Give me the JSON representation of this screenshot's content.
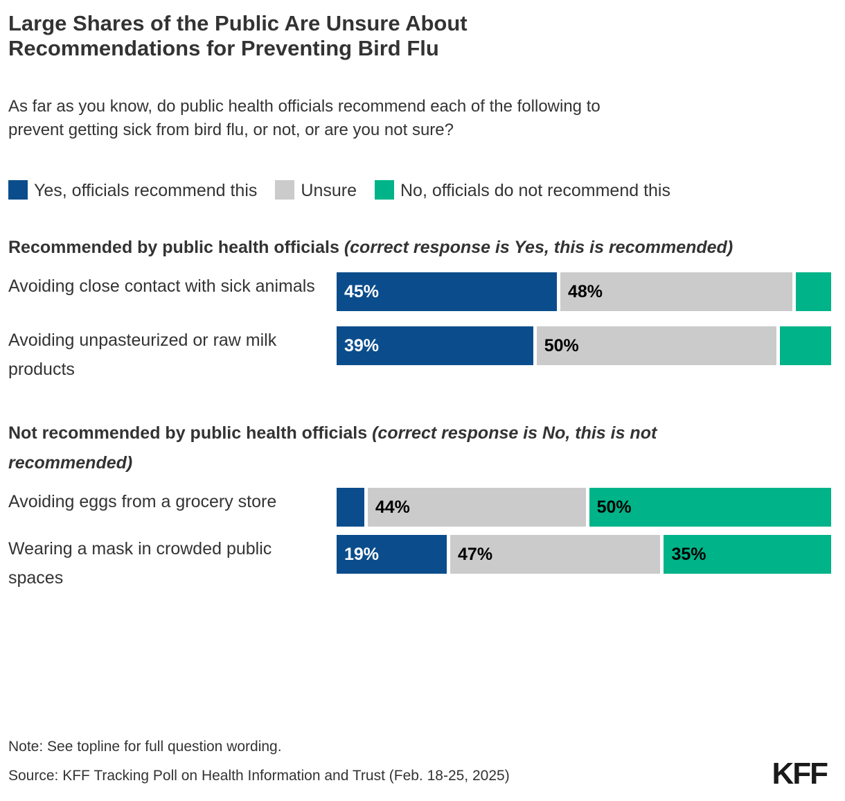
{
  "title": "Large Shares of the Public Are Unsure About Recommendations for Preventing Bird Flu",
  "subtitle": "As far as you know, do public health officials recommend each of the following to prevent getting sick from bird flu, or not, or are you not sure?",
  "colors": {
    "yes": "#0B4D8C",
    "unsure": "#CBCBCB",
    "no": "#00B388"
  },
  "legend": {
    "items": [
      {
        "key": "yes",
        "label": "Yes, officials recommend this"
      },
      {
        "key": "unsure",
        "label": "Unsure"
      },
      {
        "key": "no",
        "label": "No, officials do not recommend this"
      }
    ]
  },
  "groups": [
    {
      "heading_bold": "Recommended by public health officials",
      "heading_italic": " (correct response is Yes, this is recommended)",
      "rows": [
        {
          "label": "Avoiding close contact with sick animals",
          "segments": [
            {
              "key": "yes",
              "value": 45,
              "display": "45%"
            },
            {
              "key": "unsure",
              "value": 48,
              "display": "48%"
            },
            {
              "key": "no",
              "value": 7,
              "display": ""
            }
          ]
        },
        {
          "label": "Avoiding unpasteurized or raw milk products",
          "segments": [
            {
              "key": "yes",
              "value": 39,
              "display": "39%"
            },
            {
              "key": "unsure",
              "value": 50,
              "display": "50%"
            },
            {
              "key": "no",
              "value": 11,
              "display": ""
            }
          ]
        }
      ]
    },
    {
      "heading_bold": "Not recommended by public health officials",
      "heading_italic": " (correct response is No, this is not recommended)",
      "rows": [
        {
          "label": "Avoiding eggs from a grocery store",
          "segments": [
            {
              "key": "yes",
              "value": 5,
              "display": ""
            },
            {
              "key": "unsure",
              "value": 44,
              "display": "44%"
            },
            {
              "key": "no",
              "value": 50,
              "display": "50%"
            }
          ]
        },
        {
          "label": "Wearing a mask in crowded public spaces",
          "segments": [
            {
              "key": "yes",
              "value": 19,
              "display": "19%"
            },
            {
              "key": "unsure",
              "value": 47,
              "display": "47%"
            },
            {
              "key": "no",
              "value": 35,
              "display": "35%"
            }
          ]
        }
      ]
    }
  ],
  "footer": {
    "note": "Note: See topline for full question wording.",
    "source": "Source: KFF Tracking Poll on Health Information and Trust (Feb. 18-25, 2025)",
    "logo": "KFF"
  },
  "chart_data": {
    "type": "bar",
    "variant": "horizontal-stacked",
    "title": "Large Shares of the Public Are Unsure About Recommendations for Preventing Bird Flu",
    "question": "As far as you know, do public health officials recommend each of the following to prevent getting sick from bird flu, or not, or are you not sure?",
    "categories": [
      "Avoiding close contact with sick animals",
      "Avoiding unpasteurized or raw milk products",
      "Avoiding eggs from a grocery store",
      "Wearing a mask in crowded public spaces"
    ],
    "category_groups": [
      "Recommended by public health officials (correct response is Yes, this is recommended)",
      "Recommended by public health officials (correct response is Yes, this is recommended)",
      "Not recommended by public health officials (correct response is No, this is not recommended)",
      "Not recommended by public health officials (correct response is No, this is not recommended)"
    ],
    "series": [
      {
        "name": "Yes, officials recommend this",
        "color": "#0B4D8C",
        "values": [
          45,
          39,
          5,
          19
        ]
      },
      {
        "name": "Unsure",
        "color": "#CBCBCB",
        "values": [
          48,
          50,
          44,
          47
        ]
      },
      {
        "name": "No, officials do not recommend this",
        "color": "#00B388",
        "values": [
          7,
          11,
          50,
          35
        ]
      }
    ],
    "value_labels_shown": [
      [
        "45%",
        "48%",
        ""
      ],
      [
        "39%",
        "50%",
        ""
      ],
      [
        "",
        "44%",
        "50%"
      ],
      [
        "19%",
        "47%",
        "35%"
      ]
    ],
    "xlim": [
      0,
      100
    ],
    "grid": false,
    "legend_position": "top",
    "note": "Note: See topline for full question wording.",
    "source": "Source: KFF Tracking Poll on Health Information and Trust (Feb. 18-25, 2025)"
  }
}
